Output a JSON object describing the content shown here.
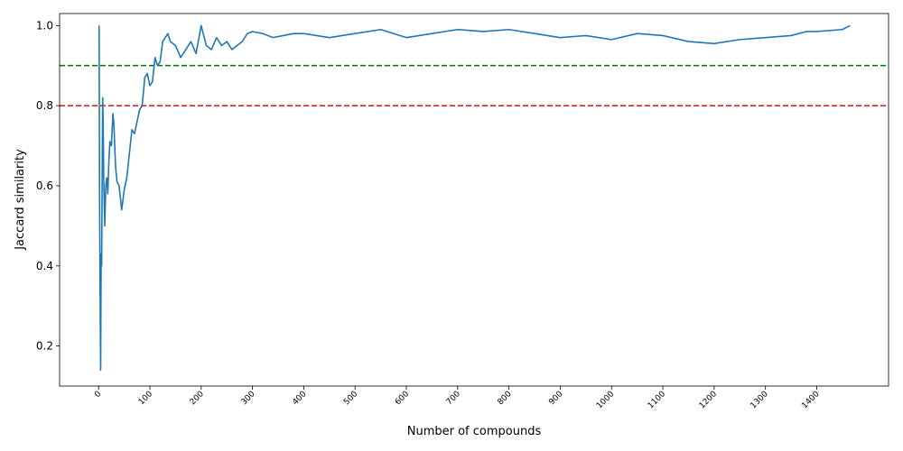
{
  "chart_data": {
    "type": "line",
    "title": "",
    "xlabel": "Number of compounds",
    "ylabel": "Jaccard similarity",
    "xlim": [
      -76,
      1540
    ],
    "ylim": [
      0.1,
      1.03
    ],
    "xticks": [
      0,
      100,
      200,
      300,
      400,
      500,
      600,
      700,
      800,
      900,
      1000,
      1100,
      1200,
      1300,
      1400
    ],
    "xtick_labels": [
      "0",
      "100",
      "200",
      "300",
      "400",
      "500",
      "600",
      "700",
      "800",
      "900",
      "1000",
      "1100",
      "1200",
      "1300",
      "1400"
    ],
    "yticks": [
      0.2,
      0.4,
      0.6,
      0.8,
      1.0
    ],
    "ytick_labels": [
      "0.2",
      "0.4",
      "0.6",
      "0.8",
      "1.0"
    ],
    "grid": false,
    "reference_lines": [
      {
        "y": 0.9,
        "color": "#008000",
        "style": "dashed"
      },
      {
        "y": 0.8,
        "color": "#d62728",
        "style": "dashed"
      }
    ],
    "series": [
      {
        "color": "#1f77b4",
        "x": [
          1,
          2,
          3,
          4,
          5,
          6,
          7,
          8,
          9,
          10,
          12,
          14,
          16,
          18,
          20,
          22,
          25,
          28,
          30,
          33,
          36,
          40,
          45,
          50,
          55,
          60,
          65,
          70,
          75,
          80,
          85,
          90,
          95,
          100,
          105,
          110,
          115,
          120,
          125,
          130,
          135,
          140,
          150,
          160,
          170,
          180,
          190,
          200,
          210,
          220,
          230,
          240,
          250,
          260,
          270,
          280,
          290,
          300,
          320,
          340,
          360,
          380,
          400,
          450,
          500,
          550,
          600,
          650,
          700,
          750,
          800,
          850,
          900,
          950,
          1000,
          1050,
          1100,
          1150,
          1200,
          1250,
          1300,
          1350,
          1380,
          1400,
          1450,
          1465
        ],
        "y": [
          1.0,
          0.55,
          0.33,
          0.14,
          0.43,
          0.4,
          0.62,
          0.82,
          0.75,
          0.62,
          0.5,
          0.6,
          0.62,
          0.58,
          0.66,
          0.71,
          0.7,
          0.78,
          0.75,
          0.65,
          0.61,
          0.6,
          0.54,
          0.59,
          0.62,
          0.68,
          0.74,
          0.73,
          0.76,
          0.79,
          0.8,
          0.87,
          0.88,
          0.85,
          0.86,
          0.92,
          0.9,
          0.91,
          0.96,
          0.97,
          0.98,
          0.96,
          0.95,
          0.92,
          0.94,
          0.96,
          0.93,
          1.0,
          0.95,
          0.94,
          0.97,
          0.95,
          0.96,
          0.94,
          0.95,
          0.96,
          0.98,
          0.985,
          0.98,
          0.97,
          0.975,
          0.98,
          0.98,
          0.97,
          0.98,
          0.99,
          0.97,
          0.98,
          0.99,
          0.985,
          0.99,
          0.98,
          0.97,
          0.975,
          0.965,
          0.98,
          0.975,
          0.96,
          0.955,
          0.965,
          0.97,
          0.975,
          0.985,
          0.985,
          0.99,
          1.0
        ]
      }
    ]
  }
}
